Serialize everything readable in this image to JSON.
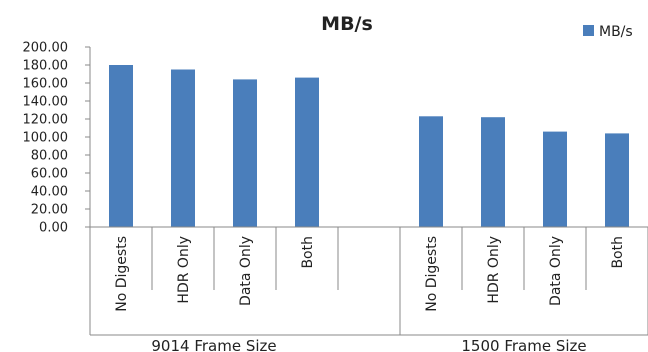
{
  "chart_data": {
    "type": "bar",
    "title": "MB/s",
    "groups": [
      {
        "label": "9014 Frame Size",
        "categories": [
          "No Digests",
          "HDR Only",
          "Data Only",
          "Both"
        ]
      },
      {
        "label": "1500 Frame Size",
        "categories": [
          "No Digests",
          "HDR Only",
          "Data Only",
          "Both"
        ]
      }
    ],
    "series": [
      {
        "name": "MB/s",
        "color": "#4a7ebb",
        "values": [
          180,
          175,
          164,
          166,
          null,
          123,
          122,
          106,
          104
        ]
      }
    ],
    "ylim": [
      0,
      200
    ],
    "yticks": [
      "0.00",
      "20.00",
      "40.00",
      "60.00",
      "80.00",
      "100.00",
      "120.00",
      "140.00",
      "160.00",
      "180.00",
      "200.00"
    ],
    "legend_position": "top-right",
    "grid": false
  }
}
